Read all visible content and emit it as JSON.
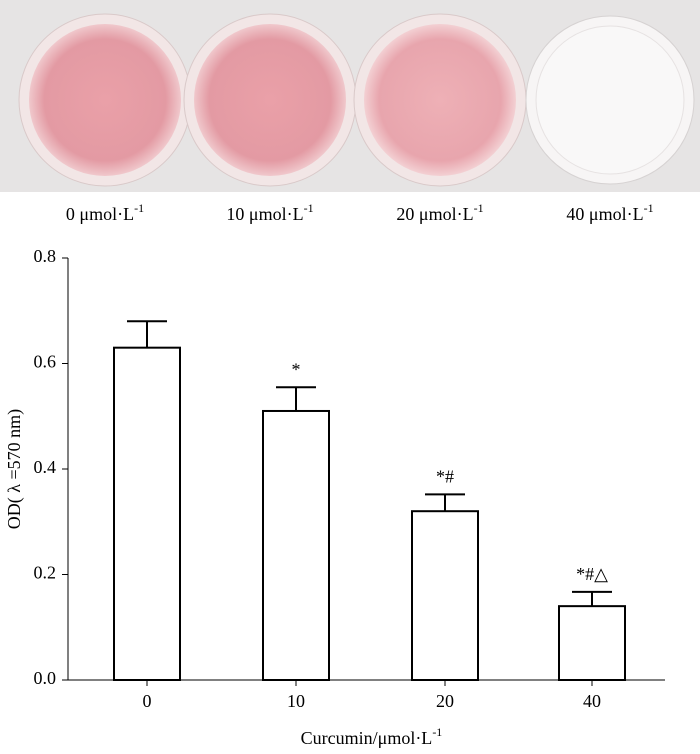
{
  "photo": {
    "labels": [
      {
        "text": "0 μmol·L",
        "sup": "-1"
      },
      {
        "text": "10 μmol·L",
        "sup": "-1"
      },
      {
        "text": "20 μmol·L",
        "sup": "-1"
      },
      {
        "text": "40 μmol·L",
        "sup": "-1"
      }
    ]
  },
  "chart_data": {
    "type": "bar",
    "categories": [
      "0",
      "10",
      "20",
      "40"
    ],
    "values": [
      0.63,
      0.51,
      0.32,
      0.14
    ],
    "errors": [
      0.05,
      0.045,
      0.032,
      0.027
    ],
    "annotations": [
      {
        "category": "10",
        "text": "*"
      },
      {
        "category": "20",
        "text": "*#"
      },
      {
        "category": "40",
        "text": "*#△"
      }
    ],
    "color": "#ffffff",
    "ylim": [
      0,
      0.8
    ],
    "yticks": [
      {
        "value": 0,
        "label": "0.0"
      },
      0.2,
      0.4,
      0.6,
      0.8
    ],
    "y_label": "OD( λ =570 nm)",
    "x_label": {
      "text": "Curcumin/μmol·L",
      "sup": "-1"
    }
  }
}
